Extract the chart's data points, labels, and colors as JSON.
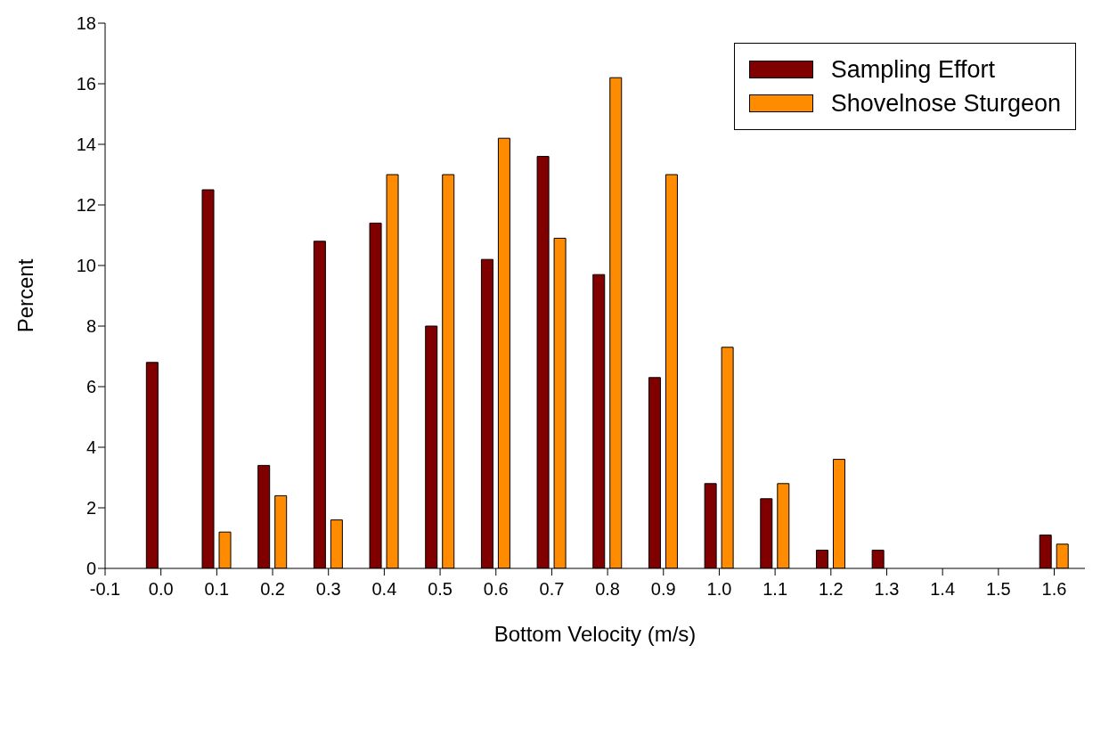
{
  "chart_data": {
    "type": "bar",
    "xlabel": "Bottom Velocity (m/s)",
    "ylabel": "Percent",
    "x": [
      0.0,
      0.1,
      0.2,
      0.3,
      0.4,
      0.5,
      0.6,
      0.7,
      0.8,
      0.9,
      1.0,
      1.1,
      1.2,
      1.3,
      1.4,
      1.5,
      1.6
    ],
    "series": [
      {
        "name": "Sampling Effort",
        "color": "#800000",
        "values": [
          6.8,
          12.5,
          3.4,
          10.8,
          11.4,
          8.0,
          10.2,
          13.6,
          9.7,
          6.3,
          2.8,
          2.3,
          0.6,
          0.6,
          0,
          0,
          1.1
        ]
      },
      {
        "name": "Shovelnose Sturgeon",
        "color": "#ff8c00",
        "values": [
          0,
          1.2,
          2.4,
          1.6,
          13.0,
          13.0,
          14.2,
          10.9,
          16.2,
          13.0,
          7.3,
          2.8,
          3.6,
          0,
          0,
          0,
          0.8
        ]
      }
    ],
    "xlim": [
      -0.1,
      1.655
    ],
    "xticks": [
      {
        "value": -0.1,
        "label": "-0.1"
      },
      {
        "value": 0,
        "label": "0.0"
      },
      {
        "value": 0.1,
        "label": "0.1"
      },
      {
        "value": 0.2,
        "label": "0.2"
      },
      {
        "value": 0.3,
        "label": "0.3"
      },
      {
        "value": 0.4,
        "label": "0.4"
      },
      {
        "value": 0.5,
        "label": "0.5"
      },
      {
        "value": 0.6,
        "label": "0.6"
      },
      {
        "value": 0.7,
        "label": "0.7"
      },
      {
        "value": 0.8,
        "label": "0.8"
      },
      {
        "value": 0.9,
        "label": "0.9"
      },
      {
        "value": 1.0,
        "label": "1.0"
      },
      {
        "value": 1.1,
        "label": "1.1"
      },
      {
        "value": 1.2,
        "label": "1.2"
      },
      {
        "value": 1.3,
        "label": "1.3"
      },
      {
        "value": 1.4,
        "label": "1.4"
      },
      {
        "value": 1.5,
        "label": "1.5"
      },
      {
        "value": 1.6,
        "label": "1.6"
      }
    ],
    "ylim": [
      0,
      18
    ],
    "yticks": [
      0,
      2,
      4,
      6,
      8,
      10,
      12,
      14,
      16,
      18
    ],
    "grid": false,
    "legend": "top right"
  }
}
